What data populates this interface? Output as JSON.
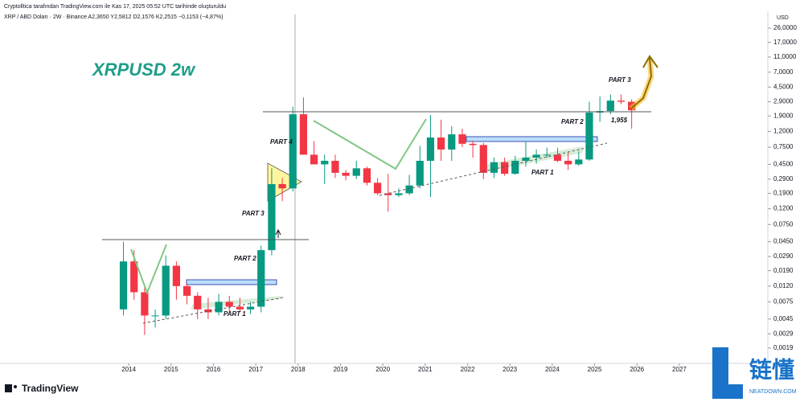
{
  "chart_data": {
    "type": "candlestick",
    "header": "Cryptolltica tarafından TradingView.com ile Kas 17, 2025 05:52 UTC tarihinde oluşturuldu",
    "symbol": "XRP / ABD Doları · 2W · Binance  A2,3650  Y2,5812  D2,1576  K2,2515  −0,1153 (−4,87%)",
    "title": "XRPUSD 2w",
    "axis_unit": "USD",
    "brand": "TradingView",
    "log_scale": true,
    "up_color": "#089981",
    "down_color": "#f23645",
    "annotations": [
      "PART 4",
      "PART 3",
      "PART 2",
      "PART 1",
      "PART 1",
      "PART 2",
      "PART 3",
      "1,95$"
    ],
    "xlim": [
      2010.96,
      2029.09
    ],
    "ylim": [
      0.00126,
      39
    ],
    "xticks": [
      2014,
      2015,
      2016,
      2017,
      2018,
      2019,
      2020,
      2021,
      2022,
      2023,
      2024,
      2025,
      2026,
      2027
    ],
    "yticks": [
      {
        "value": 26,
        "label": "26,0000"
      },
      {
        "value": 17,
        "label": "17,0000"
      },
      {
        "value": 11,
        "label": "11,0000"
      },
      {
        "value": 7,
        "label": "7,0000"
      },
      {
        "value": 4.5,
        "label": "4,5000"
      },
      {
        "value": 2.9,
        "label": "2,9000"
      },
      {
        "value": 1.9,
        "label": "1,9000"
      },
      {
        "value": 1.2,
        "label": "1,2000"
      },
      {
        "value": 0.75,
        "label": "0,7500"
      },
      {
        "value": 0.45,
        "label": "0,4500"
      },
      {
        "value": 0.29,
        "label": "0,2900"
      },
      {
        "value": 0.19,
        "label": "0,1900"
      },
      {
        "value": 0.12,
        "label": "0,1200"
      },
      {
        "value": 0.075,
        "label": "0,0750"
      },
      {
        "value": 0.045,
        "label": "0,0450"
      },
      {
        "value": 0.029,
        "label": "0,0290"
      },
      {
        "value": 0.019,
        "label": "0,0190"
      },
      {
        "value": 0.012,
        "label": "0,0120"
      },
      {
        "value": 0.0075,
        "label": "0,0075"
      },
      {
        "value": 0.0045,
        "label": "0,0045"
      },
      {
        "value": 0.0029,
        "label": "0,0029"
      },
      {
        "value": 0.0019,
        "label": "0,0019"
      }
    ],
    "x": [
      2013.875,
      2014.125,
      2014.375,
      2014.625,
      2014.875,
      2015.125,
      2015.375,
      2015.625,
      2015.875,
      2016.125,
      2016.375,
      2016.625,
      2016.875,
      2017.125,
      2017.375,
      2017.625,
      2017.875,
      2018.125,
      2018.375,
      2018.625,
      2018.875,
      2019.125,
      2019.375,
      2019.625,
      2019.875,
      2020.125,
      2020.375,
      2020.625,
      2020.875,
      2021.125,
      2021.375,
      2021.625,
      2021.875,
      2022.125,
      2022.375,
      2022.625,
      2022.875,
      2023.125,
      2023.375,
      2023.625,
      2023.875,
      2024.125,
      2024.375,
      2024.625,
      2024.875,
      2025.125,
      2025.375,
      2025.625,
      2025.875
    ],
    "open": [
      0.006,
      0.025,
      0.01,
      0.005,
      0.005,
      0.022,
      0.012,
      0.009,
      0.006,
      0.0055,
      0.0075,
      0.0065,
      0.006,
      0.0065,
      0.035,
      0.25,
      0.22,
      2.0,
      0.6,
      0.45,
      0.5,
      0.35,
      0.32,
      0.4,
      0.26,
      0.19,
      0.18,
      0.19,
      0.24,
      0.5,
      1.0,
      0.7,
      1.1,
      0.83,
      0.8,
      0.35,
      0.48,
      0.34,
      0.5,
      0.55,
      0.6,
      0.6,
      0.5,
      0.45,
      0.52,
      2.1,
      2.2,
      3.0,
      2.9
    ],
    "high": [
      0.045,
      0.035,
      0.012,
      0.006,
      0.03,
      0.025,
      0.013,
      0.01,
      0.0085,
      0.0095,
      0.009,
      0.0085,
      0.0075,
      0.04,
      0.4,
      0.3,
      2.5,
      3.3,
      0.9,
      0.6,
      0.6,
      0.38,
      0.5,
      0.42,
      0.3,
      0.34,
      0.22,
      0.33,
      0.78,
      1.96,
      1.7,
      1.4,
      1.3,
      0.91,
      0.85,
      0.55,
      0.55,
      0.58,
      0.9,
      0.7,
      0.74,
      0.74,
      0.64,
      0.66,
      2.9,
      3.4,
      3.6,
      3.6,
      3.1
    ],
    "low": [
      0.005,
      0.008,
      0.0028,
      0.0035,
      0.0045,
      0.008,
      0.007,
      0.0045,
      0.0045,
      0.005,
      0.0055,
      0.0055,
      0.0052,
      0.0055,
      0.03,
      0.15,
      0.2,
      0.6,
      0.45,
      0.25,
      0.3,
      0.28,
      0.29,
      0.24,
      0.18,
      0.11,
      0.17,
      0.18,
      0.22,
      0.17,
      0.5,
      0.5,
      0.75,
      0.55,
      0.29,
      0.3,
      0.32,
      0.33,
      0.42,
      0.46,
      0.55,
      0.48,
      0.38,
      0.43,
      0.5,
      1.6,
      2.0,
      2.7,
      1.3
    ],
    "close": [
      0.025,
      0.01,
      0.005,
      0.005,
      0.022,
      0.012,
      0.009,
      0.006,
      0.0055,
      0.0075,
      0.0065,
      0.006,
      0.0065,
      0.035,
      0.25,
      0.22,
      2.0,
      0.6,
      0.45,
      0.5,
      0.35,
      0.32,
      0.4,
      0.26,
      0.19,
      0.18,
      0.19,
      0.24,
      0.5,
      1.0,
      0.7,
      1.1,
      0.83,
      0.8,
      0.35,
      0.48,
      0.34,
      0.5,
      0.55,
      0.6,
      0.6,
      0.5,
      0.45,
      0.52,
      2.1,
      2.2,
      3.0,
      2.9,
      2.25
    ]
  },
  "watermark": {
    "chars": "链懂",
    "site": "NEATDOWN.COM"
  }
}
